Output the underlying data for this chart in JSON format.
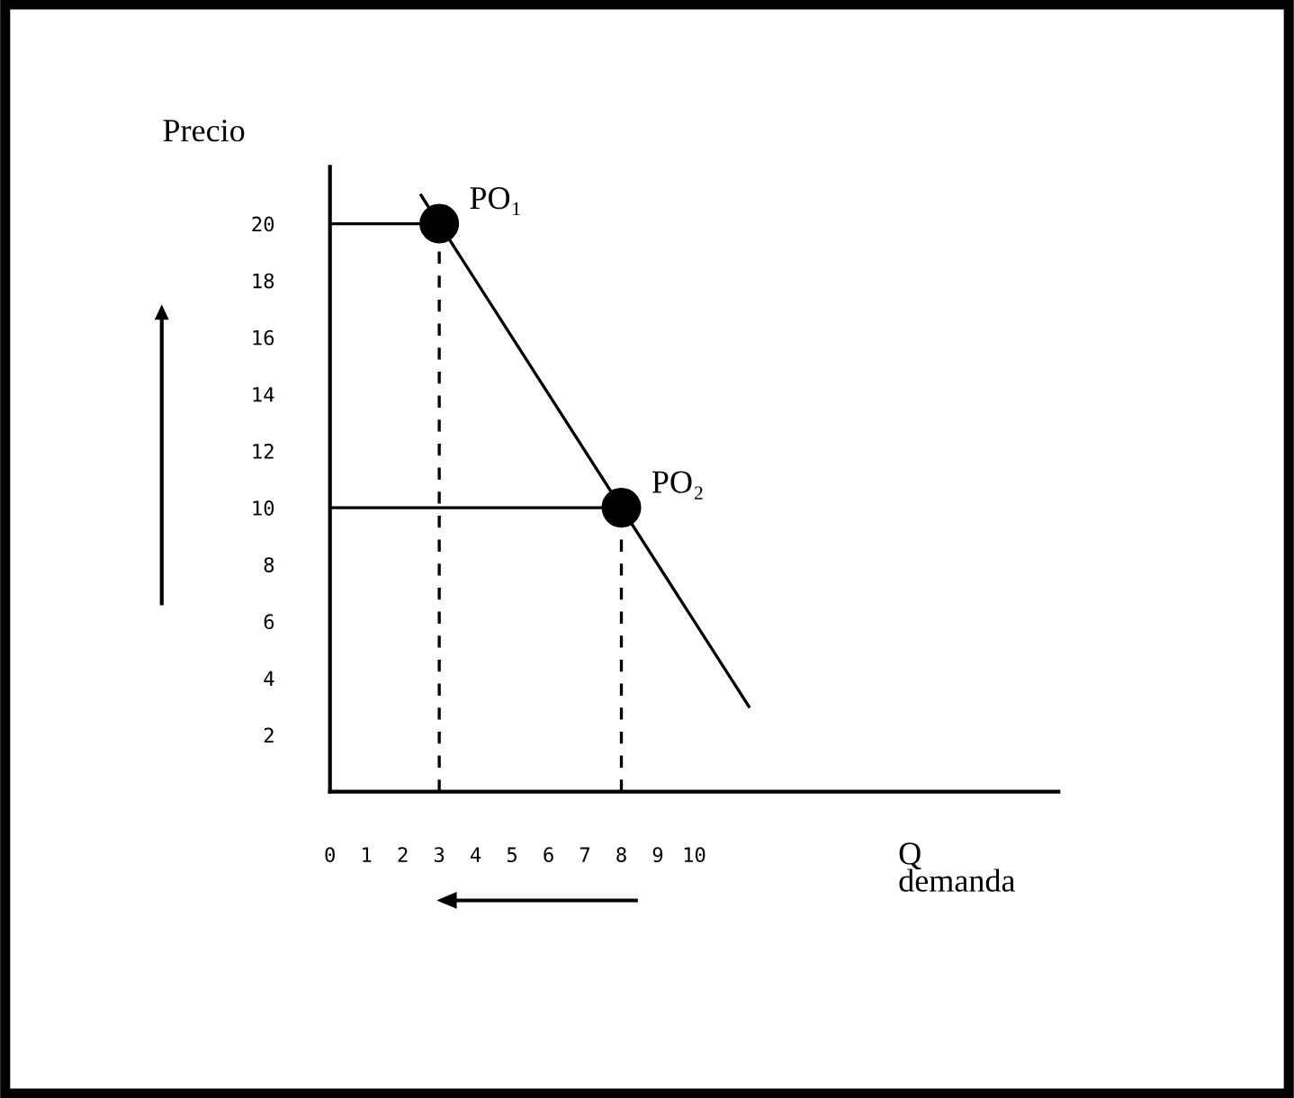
{
  "chart_data": {
    "type": "line",
    "xlabel": "Q\ndemanda",
    "ylabel": "Precio",
    "xlim": [
      0,
      20
    ],
    "ylim": [
      0,
      22
    ],
    "xticks": [
      0,
      1,
      2,
      3,
      4,
      5,
      6,
      7,
      8,
      9,
      10
    ],
    "yticks": [
      2,
      4,
      6,
      8,
      10,
      12,
      14,
      16,
      18,
      20
    ],
    "grid": false,
    "legend": false,
    "series": [
      {
        "color": "#000000",
        "x": [
          2.5,
          11.5
        ],
        "values": [
          21,
          3
        ],
        "line_style": "solid",
        "marker": "none"
      },
      {
        "color": "#000000",
        "x": [
          0,
          3
        ],
        "values": [
          20,
          20
        ],
        "line_style": "solid",
        "marker": "none"
      },
      {
        "color": "#000000",
        "x": [
          0,
          8
        ],
        "values": [
          10,
          10
        ],
        "line_style": "solid",
        "marker": "none"
      },
      {
        "color": "#000000",
        "x": [
          3,
          3
        ],
        "values": [
          0,
          20
        ],
        "line_style": "dashed",
        "marker": "none"
      },
      {
        "color": "#000000",
        "x": [
          8,
          8
        ],
        "values": [
          0,
          10
        ],
        "line_style": "dashed",
        "marker": "none"
      },
      {
        "type": "scatter",
        "color": "#000000",
        "x": [
          3,
          8
        ],
        "values": [
          20,
          10
        ],
        "marker": "circle"
      }
    ],
    "annotations": [
      {
        "text": "PO₁",
        "x": 3,
        "y": 20
      },
      {
        "text": "PO₂",
        "x": 8,
        "y": 10
      }
    ]
  }
}
